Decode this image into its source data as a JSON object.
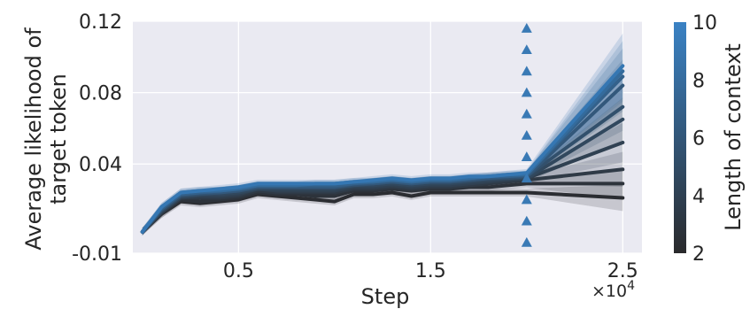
{
  "chart_data": {
    "type": "line",
    "xlabel": "Step",
    "ylabel_lines": [
      "Average likelihood of",
      "target token"
    ],
    "x_multiplier_text": "×10",
    "x_multiplier_exp": "4",
    "xlim": [
      -0.05,
      2.6
    ],
    "ylim": [
      -0.01,
      0.12
    ],
    "xticks": [
      0.5,
      1.5,
      2.5
    ],
    "xtick_labels": [
      "0.5",
      "1.5",
      "2.5"
    ],
    "yticks": [
      -0.01,
      0.04,
      0.08,
      0.12
    ],
    "ytick_labels": [
      "-0.01",
      "0.04",
      "0.08",
      "0.12"
    ],
    "grid": true,
    "background_color": "#eaeaf2",
    "x": [
      0.0,
      0.1,
      0.2,
      0.3,
      0.4,
      0.5,
      0.6,
      0.7,
      0.8,
      0.9,
      1.0,
      1.1,
      1.2,
      1.3,
      1.4,
      1.5,
      1.6,
      1.7,
      1.8,
      1.9,
      2.0,
      2.5
    ],
    "series": [
      {
        "context_length": 2,
        "color": "#2b2d32",
        "values": [
          0.002,
          0.012,
          0.019,
          0.018,
          0.019,
          0.02,
          0.023,
          0.022,
          0.021,
          0.02,
          0.019,
          0.023,
          0.023,
          0.024,
          0.022,
          0.024,
          0.024,
          0.024,
          0.024,
          0.024,
          0.024,
          0.021
        ]
      },
      {
        "context_length": 3,
        "color": "#2d333b",
        "values": [
          0.002,
          0.012,
          0.02,
          0.019,
          0.02,
          0.021,
          0.024,
          0.023,
          0.023,
          0.022,
          0.022,
          0.025,
          0.025,
          0.026,
          0.025,
          0.026,
          0.026,
          0.027,
          0.027,
          0.028,
          0.029,
          0.029
        ]
      },
      {
        "context_length": 4,
        "color": "#2f3a46",
        "values": [
          0.002,
          0.013,
          0.021,
          0.021,
          0.021,
          0.022,
          0.025,
          0.024,
          0.024,
          0.024,
          0.024,
          0.026,
          0.026,
          0.027,
          0.026,
          0.027,
          0.027,
          0.028,
          0.029,
          0.03,
          0.031,
          0.037
        ]
      },
      {
        "context_length": 5,
        "color": "#304152",
        "values": [
          0.002,
          0.013,
          0.021,
          0.022,
          0.022,
          0.023,
          0.026,
          0.025,
          0.025,
          0.025,
          0.025,
          0.027,
          0.027,
          0.028,
          0.027,
          0.028,
          0.028,
          0.029,
          0.03,
          0.031,
          0.032,
          0.052
        ]
      },
      {
        "context_length": 6,
        "color": "#31485e",
        "values": [
          0.002,
          0.014,
          0.022,
          0.023,
          0.023,
          0.024,
          0.026,
          0.026,
          0.026,
          0.026,
          0.026,
          0.028,
          0.028,
          0.029,
          0.028,
          0.029,
          0.029,
          0.03,
          0.031,
          0.032,
          0.032,
          0.065
        ]
      },
      {
        "context_length": 7,
        "color": "#32506c",
        "values": [
          0.002,
          0.014,
          0.022,
          0.023,
          0.024,
          0.025,
          0.027,
          0.027,
          0.027,
          0.027,
          0.027,
          0.028,
          0.029,
          0.03,
          0.029,
          0.03,
          0.03,
          0.031,
          0.032,
          0.032,
          0.033,
          0.072
        ]
      },
      {
        "context_length": 8,
        "color": "#33587b",
        "values": [
          0.002,
          0.015,
          0.023,
          0.024,
          0.024,
          0.025,
          0.027,
          0.027,
          0.027,
          0.027,
          0.027,
          0.029,
          0.029,
          0.03,
          0.029,
          0.03,
          0.03,
          0.031,
          0.032,
          0.033,
          0.033,
          0.084
        ]
      },
      {
        "context_length": 9,
        "color": "#33618b",
        "values": [
          0.002,
          0.015,
          0.023,
          0.024,
          0.025,
          0.026,
          0.028,
          0.028,
          0.028,
          0.028,
          0.028,
          0.029,
          0.03,
          0.031,
          0.03,
          0.031,
          0.031,
          0.032,
          0.033,
          0.033,
          0.034,
          0.089
        ]
      },
      {
        "context_length": 10,
        "color": "#346b9c",
        "values": [
          0.002,
          0.016,
          0.024,
          0.025,
          0.025,
          0.026,
          0.028,
          0.028,
          0.028,
          0.029,
          0.029,
          0.03,
          0.03,
          0.031,
          0.03,
          0.031,
          0.031,
          0.032,
          0.033,
          0.034,
          0.034,
          0.092
        ]
      },
      {
        "context_length": 11,
        "color": "#3577b3",
        "values": [
          0.002,
          0.016,
          0.024,
          0.025,
          0.026,
          0.027,
          0.029,
          0.029,
          0.029,
          0.029,
          0.029,
          0.03,
          0.031,
          0.032,
          0.031,
          0.032,
          0.032,
          0.033,
          0.033,
          0.034,
          0.035,
          0.095
        ]
      }
    ],
    "markers": {
      "shape": "triangle-up",
      "color": "#3a7ab5",
      "x": 2.0,
      "y": [
        -0.004,
        0.008,
        0.02,
        0.032,
        0.044,
        0.056,
        0.068,
        0.08,
        0.092,
        0.104,
        0.116
      ]
    },
    "colorbar": {
      "label": "Length of context",
      "range": [
        2,
        10
      ],
      "ticks": [
        "2",
        "4",
        "6",
        "8",
        "10"
      ],
      "tick_values": [
        2,
        4,
        6,
        8,
        10
      ],
      "color_low": "#2a2a2c",
      "color_high": "#3a82c4"
    }
  }
}
